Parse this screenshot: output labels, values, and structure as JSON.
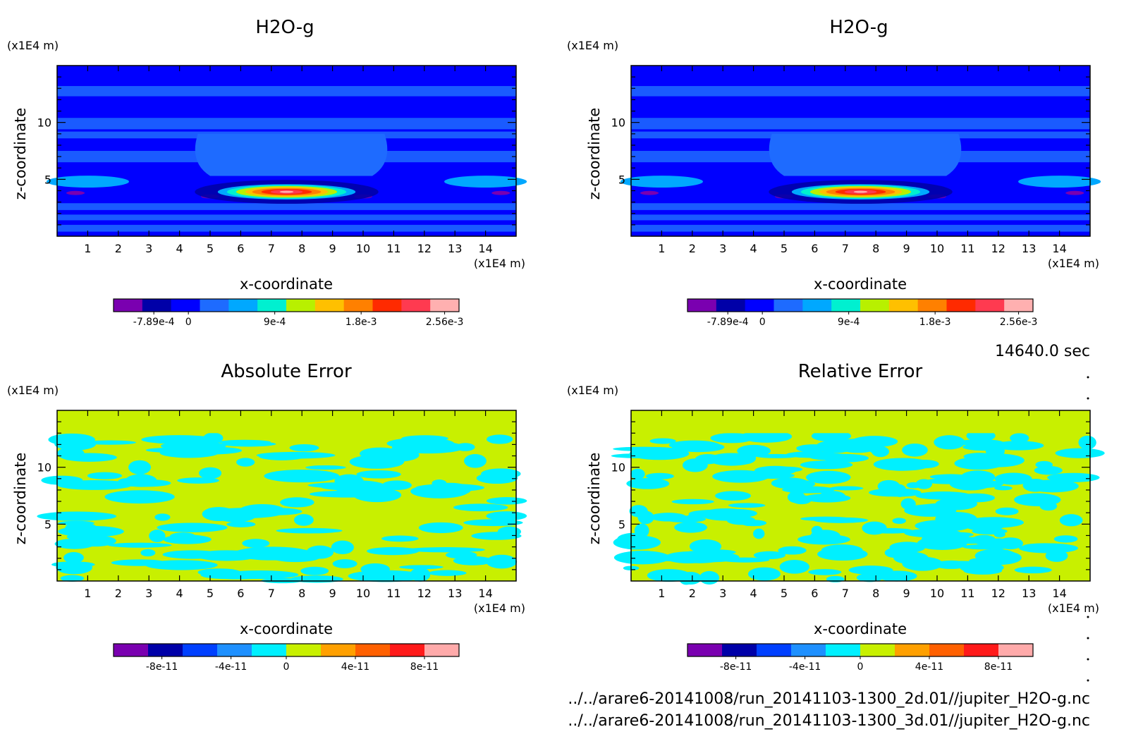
{
  "info": {
    "time_label": "14640.0 sec",
    "files": [
      "../../arare6-20141008/run_20141103-1300_2d.01//jupiter_H2O-g.nc",
      "../../arare6-20141008/run_20141103-1300_3d.01//jupiter_H2O-g.nc"
    ]
  },
  "chart_data": [
    {
      "type": "heatmap",
      "title": "H2O-g",
      "xlabel": "x-coordinate",
      "ylabel": "z-coordinate",
      "x_unit": "(x1E4 m)",
      "y_unit": "(x1E4 m)",
      "xlim": [
        0,
        15
      ],
      "ylim": [
        0,
        15
      ],
      "x_ticks": [
        "1",
        "2",
        "3",
        "4",
        "5",
        "6",
        "7",
        "8",
        "9",
        "10",
        "11",
        "12",
        "13",
        "14"
      ],
      "y_ticks": [
        "5",
        "10"
      ],
      "colorbar": {
        "labels": [
          "-7.89e-4",
          "0",
          "9e-4",
          "1.8e-3",
          "2.56e-3"
        ],
        "colors": [
          "#7a00b0",
          "#0000a8",
          "#0000ff",
          "#1e6bff",
          "#00a8ff",
          "#00f0d0",
          "#b8f000",
          "#ffc000",
          "#ff8000",
          "#ff2a00",
          "#ff3a50",
          "#ffb0b0"
        ]
      },
      "field": "plume"
    },
    {
      "type": "heatmap",
      "title": "H2O-g",
      "xlabel": "x-coordinate",
      "ylabel": "z-coordinate",
      "x_unit": "(x1E4 m)",
      "y_unit": "(x1E4 m)",
      "xlim": [
        0,
        15
      ],
      "ylim": [
        0,
        15
      ],
      "x_ticks": [
        "1",
        "2",
        "3",
        "4",
        "5",
        "6",
        "7",
        "8",
        "9",
        "10",
        "11",
        "12",
        "13",
        "14"
      ],
      "y_ticks": [
        "5",
        "10"
      ],
      "colorbar": {
        "labels": [
          "-7.89e-4",
          "0",
          "9e-4",
          "1.8e-3",
          "2.56e-3"
        ],
        "colors": [
          "#7a00b0",
          "#0000a8",
          "#0000ff",
          "#1e6bff",
          "#00a8ff",
          "#00f0d0",
          "#b8f000",
          "#ffc000",
          "#ff8000",
          "#ff2a00",
          "#ff3a50",
          "#ffb0b0"
        ]
      },
      "field": "plume"
    },
    {
      "type": "heatmap",
      "title": "Absolute Error",
      "xlabel": "x-coordinate",
      "ylabel": "z-coordinate",
      "x_unit": "(x1E4 m)",
      "y_unit": "(x1E4 m)",
      "xlim": [
        0,
        15
      ],
      "ylim": [
        0,
        15
      ],
      "x_ticks": [
        "1",
        "2",
        "3",
        "4",
        "5",
        "6",
        "7",
        "8",
        "9",
        "10",
        "11",
        "12",
        "13",
        "14"
      ],
      "y_ticks": [
        "5",
        "10"
      ],
      "colorbar": {
        "labels": [
          "-8e-11",
          "-4e-11",
          "0",
          "4e-11",
          "8e-11"
        ],
        "colors": [
          "#7a00b0",
          "#0000a8",
          "#0040ff",
          "#1e90ff",
          "#00f0ff",
          "#c8f000",
          "#ffa000",
          "#ff6000",
          "#ff1a1a",
          "#ffaaaa"
        ]
      },
      "field": "noise"
    },
    {
      "type": "heatmap",
      "title": "Relative Error",
      "xlabel": "x-coordinate",
      "ylabel": "z-coordinate",
      "x_unit": "(x1E4 m)",
      "y_unit": "(x1E4 m)",
      "xlim": [
        0,
        15
      ],
      "ylim": [
        0,
        15
      ],
      "x_ticks": [
        "1",
        "2",
        "3",
        "4",
        "5",
        "6",
        "7",
        "8",
        "9",
        "10",
        "11",
        "12",
        "13",
        "14"
      ],
      "y_ticks": [
        "5",
        "10"
      ],
      "colorbar": {
        "labels": [
          "-8e-11",
          "-4e-11",
          "0",
          "4e-11",
          "8e-11"
        ],
        "colors": [
          "#7a00b0",
          "#0000a8",
          "#0040ff",
          "#1e90ff",
          "#00f0ff",
          "#c8f000",
          "#ffa000",
          "#ff6000",
          "#ff1a1a",
          "#ffaaaa"
        ]
      },
      "field": "noise"
    }
  ]
}
